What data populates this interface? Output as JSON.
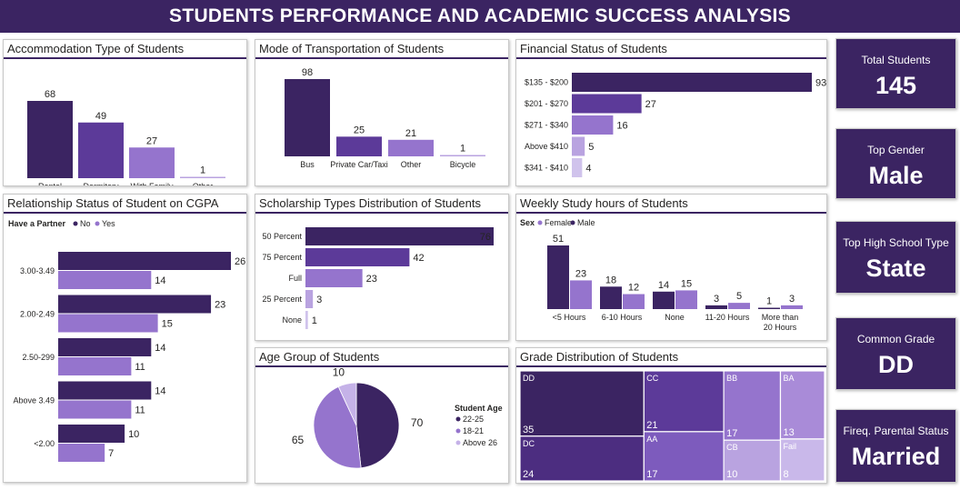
{
  "header": {
    "title": "STUDENTS PERFORMANCE AND ACADEMIC SUCCESS ANALYSIS"
  },
  "colors": {
    "header_bg": "#3b2462",
    "dark": "#3b2462",
    "mid": "#5c3a99",
    "light": "#9574cd",
    "lighter": "#b9a3e0",
    "lightest": "#d0c3ec"
  },
  "kpis": [
    {
      "label": "Total Students",
      "value": "145"
    },
    {
      "label": "Top Gender",
      "value": "Male"
    },
    {
      "label": "Top High School Type",
      "value": "State"
    },
    {
      "label": "Common Grade",
      "value": "DD"
    },
    {
      "label": "Fireq. Parental Status",
      "value": "Married"
    }
  ],
  "panels": {
    "accommodation": "Accommodation Type of Students",
    "transport": "Mode of Transportation of Students",
    "financial": "Financial Status of Students",
    "relationship": "Relationship Status of Student on CGPA",
    "scholarship": "Scholarship Types Distribution of Students",
    "study": "Weekly Study hours of Students",
    "age": "Age Group of Students",
    "grade": "Grade Distribution of Students"
  },
  "chart_data": [
    {
      "id": "accommodation",
      "type": "bar",
      "categories": [
        "Rental",
        "Dormitory",
        "With Family",
        "Other"
      ],
      "values": [
        68,
        49,
        27,
        1
      ],
      "colors": [
        "#3b2462",
        "#5c3a99",
        "#9574cd",
        "#b9a3e0"
      ]
    },
    {
      "id": "transport",
      "type": "bar",
      "categories": [
        "Bus",
        "Private Car/Taxi",
        "Other",
        "Bicycle"
      ],
      "values": [
        98,
        25,
        21,
        1
      ],
      "colors": [
        "#3b2462",
        "#5c3a99",
        "#9574cd",
        "#b9a3e0"
      ]
    },
    {
      "id": "financial",
      "type": "bar",
      "orientation": "horizontal",
      "categories": [
        "$135 - $200",
        "$201 - $270",
        "$271 - $340",
        "Above $410",
        "$341 - $410"
      ],
      "values": [
        93,
        27,
        16,
        5,
        4
      ],
      "colors": [
        "#3b2462",
        "#5c3a99",
        "#9574cd",
        "#b9a3e0",
        "#d0c3ec"
      ]
    },
    {
      "id": "relationship",
      "type": "bar",
      "orientation": "horizontal",
      "legend_title": "Have a Partner",
      "categories": [
        "3.00-3.49",
        "2.00-2.49",
        "2.50-299",
        "Above 3.49",
        "<2.00"
      ],
      "series": [
        {
          "name": "No",
          "color": "#3b2462",
          "values": [
            26,
            23,
            14,
            14,
            10
          ]
        },
        {
          "name": "Yes",
          "color": "#9574cd",
          "values": [
            14,
            15,
            11,
            11,
            7
          ]
        }
      ]
    },
    {
      "id": "scholarship",
      "type": "bar",
      "orientation": "horizontal",
      "categories": [
        "50 Percent",
        "75 Percent",
        "Full",
        "25 Percent",
        "None"
      ],
      "values": [
        76,
        42,
        23,
        3,
        1
      ],
      "colors": [
        "#3b2462",
        "#5c3a99",
        "#9574cd",
        "#b9a3e0",
        "#d0c3ec"
      ]
    },
    {
      "id": "study",
      "type": "bar",
      "legend_title": "Sex",
      "categories": [
        "<5 Hours",
        "6-10 Hours",
        "None",
        "11-20 Hours",
        "More than 20 Hours"
      ],
      "series": [
        {
          "name": "Female",
          "color": "#9574cd",
          "values": [
            23,
            12,
            15,
            5,
            3
          ]
        },
        {
          "name": "Male",
          "color": "#3b2462",
          "values": [
            51,
            18,
            14,
            3,
            1
          ]
        }
      ]
    },
    {
      "id": "age",
      "type": "pie",
      "legend_title": "Student Age",
      "slices": [
        {
          "label": "22-25",
          "value": 70,
          "color": "#3b2462"
        },
        {
          "label": "18-21",
          "value": 65,
          "color": "#9574cd"
        },
        {
          "label": "Above 26",
          "value": 10,
          "color": "#c5b2e8"
        }
      ]
    },
    {
      "id": "grade",
      "type": "treemap",
      "items": [
        {
          "label": "DD",
          "value": 35,
          "color": "#3b2462"
        },
        {
          "label": "DC",
          "value": 24,
          "color": "#4c2d80"
        },
        {
          "label": "CC",
          "value": 21,
          "color": "#5c3a99"
        },
        {
          "label": "AA",
          "value": 17,
          "color": "#7d5bbd"
        },
        {
          "label": "BB",
          "value": 17,
          "color": "#9574cd"
        },
        {
          "label": "BA",
          "value": 13,
          "color": "#a98bd8"
        },
        {
          "label": "CB",
          "value": 10,
          "color": "#b9a3e0"
        },
        {
          "label": "Fail",
          "value": 8,
          "color": "#c9b8ea"
        }
      ]
    }
  ]
}
